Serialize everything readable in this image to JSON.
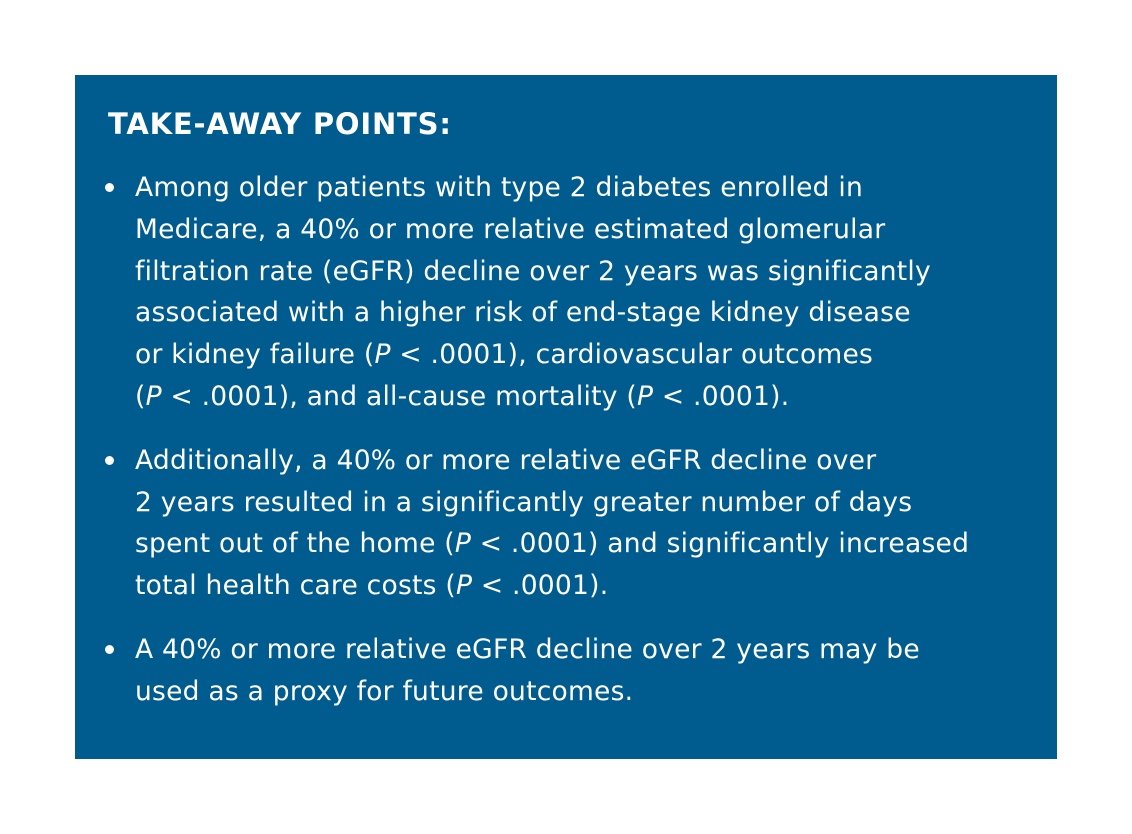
{
  "box": {
    "title": "TAKE-AWAY POINTS:",
    "background_color": "#005b8f",
    "text_color": "#ffffff"
  },
  "points": [
    {
      "lines": [
        [
          "Among older patients with type 2 diabetes enrolled in"
        ],
        [
          "Medicare, a 40% or more relative estimated glomerular"
        ],
        [
          "filtration rate (eGFR) decline over 2 years was significantly"
        ],
        [
          "associated with a higher risk of end-stage kidney disease"
        ],
        [
          "or kidney failure (",
          "P",
          " < .0001), cardiovascular outcomes"
        ],
        [
          "(",
          "P",
          " < .0001), and all-cause mortality (",
          "P",
          " < .0001)."
        ]
      ]
    },
    {
      "lines": [
        [
          "Additionally, a 40% or more relative eGFR decline over"
        ],
        [
          "2 years resulted in a significantly greater number of days"
        ],
        [
          "spent out of the home (",
          "P",
          " < .0001) and significantly increased"
        ],
        [
          "total health care costs (",
          "P",
          " < .0001)."
        ]
      ]
    },
    {
      "lines": [
        [
          "A 40% or more relative eGFR decline over 2 years may be"
        ],
        [
          "used as a proxy for future outcomes."
        ]
      ]
    }
  ]
}
